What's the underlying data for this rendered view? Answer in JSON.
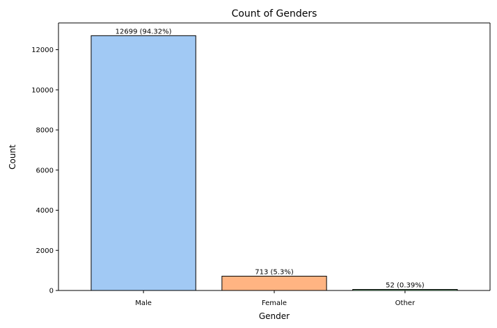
{
  "chart_data": {
    "type": "bar",
    "title": "Count of Genders",
    "xlabel": "Gender",
    "ylabel": "Count",
    "categories": [
      "Male",
      "Female",
      "Other"
    ],
    "values": [
      12699,
      713,
      52
    ],
    "bar_labels": [
      "12699 (94.32%)",
      "713 (5.3%)",
      "52 (0.39%)"
    ],
    "colors": [
      "#a1c9f4",
      "#ffb482",
      "#8de5a1"
    ],
    "edge_color": "#000000",
    "ylim": [
      0,
      13334
    ],
    "yticks": [
      0,
      2000,
      4000,
      6000,
      8000,
      10000,
      12000
    ],
    "grid": false,
    "legend": "none"
  }
}
